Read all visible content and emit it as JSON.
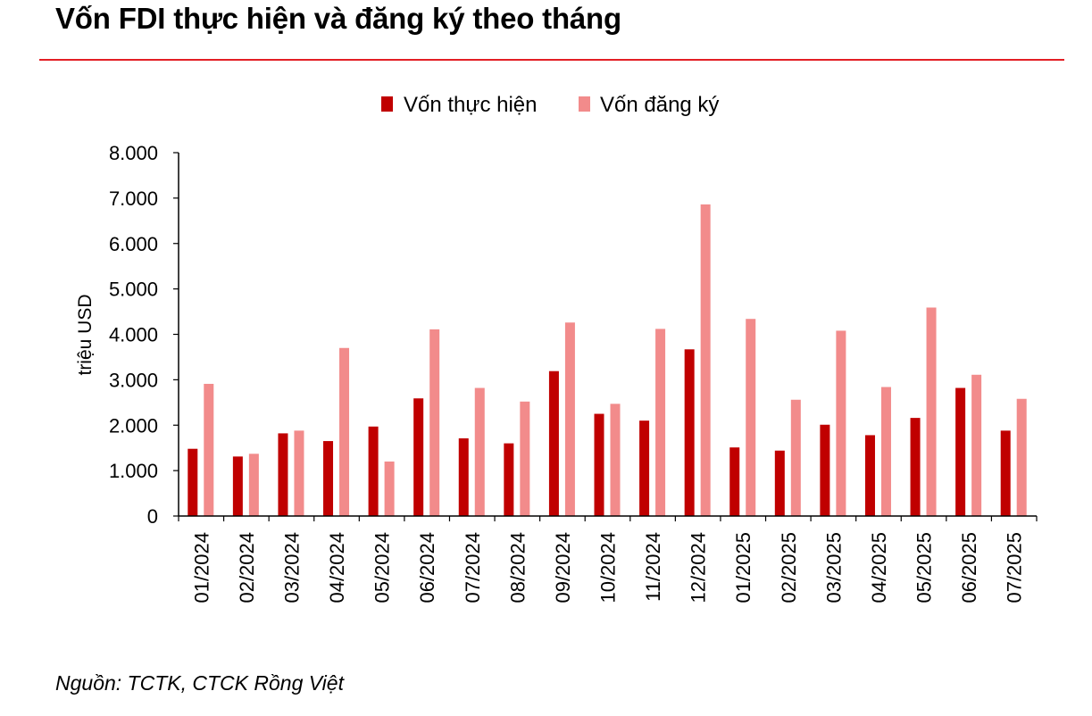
{
  "header": {
    "title": "Vốn FDI thực hiện và đăng ký theo tháng"
  },
  "footer": {
    "source": "Nguồn: TCTK, CTCK Rồng Việt"
  },
  "colors": {
    "rule": "#e31e24",
    "series_realized": "#c00000",
    "series_registered": "#f28b8b",
    "axis": "#000000"
  },
  "chart_data": {
    "type": "bar",
    "title": "Vốn FDI thực hiện và đăng ký theo tháng",
    "xlabel": "",
    "ylabel": "triệu USD",
    "ylim": [
      0,
      8000
    ],
    "yticks": [
      0,
      1000,
      2000,
      3000,
      4000,
      5000,
      6000,
      7000,
      8000
    ],
    "ytick_labels": [
      "0",
      "1.000",
      "2.000",
      "3.000",
      "4.000",
      "5.000",
      "6.000",
      "7.000",
      "8.000"
    ],
    "grid": false,
    "legend_position": "top-center",
    "categories": [
      "01/2024",
      "02/2024",
      "03/2024",
      "04/2024",
      "05/2024",
      "06/2024",
      "07/2024",
      "08/2024",
      "09/2024",
      "10/2024",
      "11/2024",
      "12/2024",
      "01/2025",
      "02/2025",
      "03/2025",
      "04/2025",
      "05/2025",
      "06/2025",
      "07/2025"
    ],
    "series": [
      {
        "name": "Vốn thực hiện",
        "color": "#c00000",
        "values": [
          1480,
          1310,
          1820,
          1650,
          1970,
          2590,
          1710,
          1600,
          3190,
          2250,
          2100,
          3670,
          1510,
          1440,
          2010,
          1780,
          2160,
          2820,
          1880
        ]
      },
      {
        "name": "Vốn đăng ký",
        "color": "#f28b8b",
        "values": [
          2910,
          1370,
          1880,
          3700,
          1200,
          4110,
          2820,
          2520,
          4260,
          2470,
          4120,
          6860,
          4340,
          2560,
          4080,
          2840,
          4590,
          3110,
          2580
        ]
      }
    ]
  }
}
